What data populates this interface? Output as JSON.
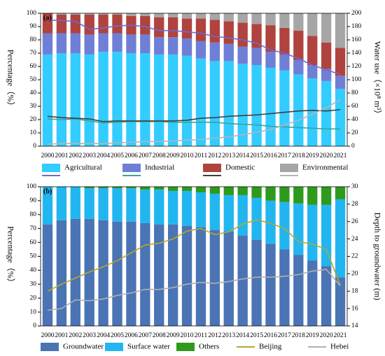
{
  "chart_data": [
    {
      "type": "bar",
      "stacked": true,
      "title": "(a)",
      "ylabel": "Percentage（%）",
      "y2label": "Water use（×10⁸ m³）",
      "categories": [
        "2000",
        "2001",
        "2002",
        "2003",
        "2004",
        "2005",
        "2006",
        "2007",
        "2008",
        "2009",
        "2010",
        "2011",
        "2012",
        "2013",
        "2014",
        "2015",
        "2016",
        "2017",
        "2018",
        "2019",
        "2020",
        "2021"
      ],
      "ylim": [
        0,
        100
      ],
      "yticks": [
        0,
        10,
        20,
        30,
        40,
        50,
        60,
        70,
        80,
        90,
        100
      ],
      "y2lim": [
        0,
        200
      ],
      "y2ticks": [
        0,
        20,
        40,
        60,
        80,
        100,
        120,
        140,
        160,
        180,
        200
      ],
      "series": [
        {
          "name": "Agricultural",
          "color": "#33ccff",
          "line_color": "#6a6ad8",
          "values": [
            69,
            70,
            70,
            69,
            71,
            71,
            70,
            70,
            69,
            69,
            68,
            66,
            64,
            64,
            62,
            61,
            59,
            57,
            54,
            51,
            49,
            43
          ],
          "line_values": [
            190,
            189,
            188,
            176,
            178,
            181,
            182,
            180,
            174,
            174,
            172,
            170,
            165,
            163,
            160,
            155,
            145,
            140,
            132,
            122,
            115,
            108
          ]
        },
        {
          "name": "Industrial",
          "color": "#6f7fd6",
          "line_color": "#3aa59a",
          "values": [
            16,
            15,
            15,
            15,
            14,
            14,
            14,
            14,
            13,
            13,
            13,
            13,
            14,
            13,
            13,
            13,
            12,
            12,
            11,
            10,
            9,
            10
          ],
          "line_values": [
            41,
            40,
            41,
            38,
            35,
            36,
            37,
            37,
            37,
            36,
            36,
            36,
            36,
            34,
            33,
            32,
            30,
            29,
            28,
            27,
            26,
            26
          ]
        },
        {
          "name": "Domestic",
          "color": "#b0433d",
          "line_color": "#404040",
          "values": [
            15,
            14,
            14,
            15,
            14,
            14,
            14,
            14,
            15,
            15,
            15,
            17,
            17,
            17,
            18,
            18,
            20,
            20,
            22,
            22,
            20,
            21
          ],
          "line_values": [
            45,
            43,
            42,
            41,
            37,
            38,
            38,
            38,
            38,
            38,
            39,
            42,
            43,
            45,
            46,
            47,
            49,
            51,
            53,
            54,
            53,
            55
          ]
        },
        {
          "name": "Environmental",
          "color": "#a6a6a6",
          "line_color": "#b5b5b5",
          "values": [
            0,
            1,
            1,
            1,
            1,
            1,
            2,
            2,
            3,
            3,
            4,
            4,
            5,
            6,
            7,
            8,
            9,
            11,
            13,
            17,
            22,
            26
          ],
          "line_values": [
            3,
            4,
            4,
            4,
            4,
            5,
            6,
            7,
            7,
            8,
            9,
            10,
            12,
            14,
            17,
            21,
            25,
            32,
            39,
            48,
            58,
            70
          ]
        }
      ]
    },
    {
      "type": "bar",
      "stacked": true,
      "title": "(b)",
      "ylabel": "Percentage（%）",
      "y2label": "Depth to groundwater (m)",
      "categories": [
        "2000",
        "2001",
        "2002",
        "2003",
        "2004",
        "2005",
        "2006",
        "2007",
        "2008",
        "2009",
        "2010",
        "2011",
        "2012",
        "2013",
        "2014",
        "2015",
        "2016",
        "2017",
        "2018",
        "2019",
        "2020",
        "2021"
      ],
      "ylim": [
        0,
        100
      ],
      "yticks": [
        0,
        10,
        20,
        30,
        40,
        50,
        60,
        70,
        80,
        90,
        100
      ],
      "y2lim": [
        14,
        30
      ],
      "y2ticks": [
        14,
        16,
        18,
        20,
        22,
        24,
        26,
        28,
        30
      ],
      "series": [
        {
          "name": "Groundwater",
          "color": "#4a74b4",
          "values": [
            73,
            76,
            77,
            77,
            76,
            75,
            75,
            74,
            73,
            73,
            72,
            71,
            69,
            68,
            65,
            62,
            59,
            55,
            51,
            47,
            43,
            35
          ]
        },
        {
          "name": "Surface water",
          "color": "#21b6f0",
          "values": [
            27,
            24,
            23,
            22,
            23,
            24,
            24,
            24,
            25,
            24,
            25,
            25,
            26,
            26,
            29,
            30,
            31,
            34,
            37,
            40,
            44,
            56
          ]
        },
        {
          "name": "Others",
          "color": "#2e9a1c",
          "values": [
            0,
            0,
            0,
            1,
            1,
            1,
            1,
            2,
            2,
            3,
            3,
            4,
            5,
            6,
            6,
            8,
            10,
            11,
            12,
            13,
            13,
            9
          ]
        },
        {
          "name": "Beijing",
          "color": "#b8a82a",
          "axis": "y2",
          "values": [
            18.0,
            18.8,
            19.5,
            20.2,
            20.8,
            21.5,
            22.4,
            23.3,
            23.5,
            24.0,
            24.9,
            25.2,
            24.5,
            24.8,
            25.7,
            26.2,
            25.8,
            25.2,
            23.7,
            23.4,
            22.8,
            18.7
          ]
        },
        {
          "name": "Hebei",
          "color": "#b0b0b0",
          "axis": "y2",
          "values": [
            15.8,
            16.0,
            17.0,
            16.9,
            17.1,
            17.5,
            17.8,
            18.2,
            18.2,
            18.4,
            18.8,
            19.0,
            18.9,
            19.1,
            19.4,
            19.6,
            19.6,
            19.7,
            19.9,
            20.3,
            20.5,
            18.6
          ]
        }
      ]
    }
  ]
}
